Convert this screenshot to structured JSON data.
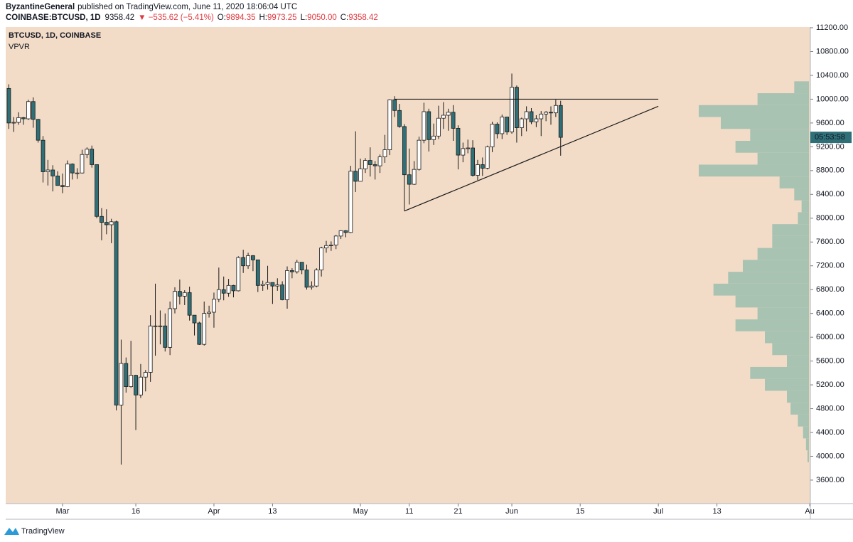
{
  "chart_data": {
    "type": "candlestick",
    "header": {
      "author": "ByzantineGeneral",
      "published": "published on TradingView.com, June 11, 2020 18:06:04 UTC",
      "symbol": "COINBASE:BTCUSD, 1D",
      "last": "9358.42",
      "change": "▼ −535.62 (−5.41%)",
      "o_label": "O:",
      "o": "9894.35",
      "h_label": "H:",
      "h": "9973.25",
      "l_label": "L:",
      "l": "9050.00",
      "c_label": "C:",
      "c": "9358.42"
    },
    "legend_title": "BTCUSD, 1D, COINBASE",
    "indicator": "VPVR",
    "countdown": "05:53:58",
    "brand": "TradingView",
    "up_color": "#ffffff",
    "down_color": "#2e6f78",
    "background": "#f2dcc7",
    "ylim": [
      3205,
      11212
    ],
    "yticks": [
      {
        "value": 3600,
        "label": "3600.00"
      },
      {
        "value": 4000,
        "label": "4000.00"
      },
      {
        "value": 4400,
        "label": "4400.00"
      },
      {
        "value": 4800,
        "label": "4800.00"
      },
      {
        "value": 5200,
        "label": "5200.00"
      },
      {
        "value": 5600,
        "label": "5600.00"
      },
      {
        "value": 6000,
        "label": "6000.00"
      },
      {
        "value": 6400,
        "label": "6400.00"
      },
      {
        "value": 6800,
        "label": "6800.00"
      },
      {
        "value": 7200,
        "label": "7200.00"
      },
      {
        "value": 7600,
        "label": "7600.00"
      },
      {
        "value": 8000,
        "label": "8000.00"
      },
      {
        "value": 8400,
        "label": "8400.00"
      },
      {
        "value": 8800,
        "label": "8800.00"
      },
      {
        "value": 9200,
        "label": "9200.00"
      },
      {
        "value": 9600,
        "label": "9600.00"
      },
      {
        "value": 10000,
        "label": "10000.00"
      },
      {
        "value": 10400,
        "label": "10400.00"
      },
      {
        "value": 10800,
        "label": "10800.00"
      },
      {
        "value": 11200,
        "label": "11200.00"
      }
    ],
    "xticks": [
      {
        "value": "Mar 1",
        "label": "Mar"
      },
      {
        "value": "Mar 16",
        "label": "16"
      },
      {
        "value": "Apr 1",
        "label": "Apr"
      },
      {
        "value": "Apr 13",
        "label": "13"
      },
      {
        "value": "May 1",
        "label": "May"
      },
      {
        "value": "May 11",
        "label": "11"
      },
      {
        "value": "May 21",
        "label": "21"
      },
      {
        "value": "Jun 1",
        "label": "Jun"
      },
      {
        "value": "Jun 15",
        "label": "15"
      },
      {
        "value": "Jul 1",
        "label": "Jul"
      },
      {
        "value": "Jul 13",
        "label": "13"
      },
      {
        "value": "Aug 1",
        "label": "Au"
      }
    ],
    "x": [
      "Feb 19",
      "Feb 20",
      "Feb 21",
      "Feb 22",
      "Feb 23",
      "Feb 24",
      "Feb 25",
      "Feb 26",
      "Feb 27",
      "Feb 28",
      "Feb 29",
      "Mar 1",
      "Mar 2",
      "Mar 3",
      "Mar 4",
      "Mar 5",
      "Mar 6",
      "Mar 7",
      "Mar 8",
      "Mar 9",
      "Mar 10",
      "Mar 11",
      "Mar 12",
      "Mar 13",
      "Mar 14",
      "Mar 15",
      "Mar 16",
      "Mar 17",
      "Mar 18",
      "Mar 19",
      "Mar 20",
      "Mar 21",
      "Mar 22",
      "Mar 23",
      "Mar 24",
      "Mar 25",
      "Mar 26",
      "Mar 27",
      "Mar 28",
      "Mar 29",
      "Mar 30",
      "Mar 31",
      "Apr 1",
      "Apr 2",
      "Apr 3",
      "Apr 4",
      "Apr 5",
      "Apr 6",
      "Apr 7",
      "Apr 8",
      "Apr 9",
      "Apr 10",
      "Apr 11",
      "Apr 12",
      "Apr 13",
      "Apr 14",
      "Apr 15",
      "Apr 16",
      "Apr 17",
      "Apr 18",
      "Apr 19",
      "Apr 20",
      "Apr 21",
      "Apr 22",
      "Apr 23",
      "Apr 24",
      "Apr 25",
      "Apr 26",
      "Apr 27",
      "Apr 28",
      "Apr 29",
      "Apr 30",
      "May 1",
      "May 2",
      "May 3",
      "May 4",
      "May 5",
      "May 6",
      "May 7",
      "May 8",
      "May 9",
      "May 10",
      "May 11",
      "May 12",
      "May 13",
      "May 14",
      "May 15",
      "May 16",
      "May 17",
      "May 18",
      "May 19",
      "May 20",
      "May 21",
      "May 22",
      "May 23",
      "May 24",
      "May 25",
      "May 26",
      "May 27",
      "May 28",
      "May 29",
      "May 30",
      "May 31",
      "Jun 1",
      "Jun 2",
      "Jun 3",
      "Jun 4",
      "Jun 5",
      "Jun 6",
      "Jun 7",
      "Jun 8",
      "Jun 9",
      "Jun 10",
      "Jun 11"
    ],
    "open": [
      10180,
      9600,
      9610,
      9690,
      9670,
      9960,
      9660,
      9310,
      8780,
      8810,
      8710,
      8550,
      8530,
      8910,
      8760,
      8760,
      9070,
      9160,
      8900,
      8030,
      7930,
      7890,
      7940,
      4860,
      5560,
      5170,
      5360,
      5030,
      5330,
      5410,
      6190,
      6190,
      6190,
      5830,
      6480,
      6770,
      6690,
      6750,
      6370,
      6240,
      5880,
      6400,
      6420,
      6640,
      6800,
      6740,
      6870,
      6780,
      7340,
      7200,
      7370,
      7300,
      6870,
      6890,
      6920,
      6860,
      6880,
      6630,
      7120,
      7100,
      7260,
      7130,
      6840,
      6860,
      7130,
      7500,
      7540,
      7550,
      7700,
      7790,
      7760,
      8790,
      8620,
      8830,
      8970,
      8900,
      8880,
      9030,
      9150,
      9990,
      9810,
      9540,
      8730,
      8570,
      8820,
      9310,
      9790,
      9320,
      9380,
      9680,
      9730,
      9780,
      9510,
      9060,
      9170,
      9180,
      8720,
      8900,
      8840,
      9200,
      9580,
      9420,
      9700,
      9450,
      10200,
      9520,
      9670,
      9790,
      9620,
      9670,
      9750,
      9780,
      9770,
      9894.35
    ],
    "high": [
      10250,
      9700,
      9780,
      9700,
      9990,
      10030,
      9670,
      9380,
      8980,
      8890,
      8790,
      8750,
      8970,
      8920,
      8840,
      9150,
      9190,
      9220,
      8900,
      8170,
      8150,
      7990,
      7960,
      5960,
      5660,
      5940,
      5370,
      5550,
      5450,
      6370,
      6900,
      6450,
      6400,
      6600,
      6840,
      6970,
      6790,
      6850,
      6370,
      6260,
      6600,
      6530,
      6750,
      7170,
      7020,
      6980,
      6880,
      7360,
      7470,
      7420,
      7380,
      7300,
      6950,
      7200,
      6920,
      6990,
      6940,
      7190,
      7160,
      7300,
      7260,
      7220,
      6940,
      7160,
      7520,
      7620,
      7610,
      7720,
      7800,
      7800,
      8880,
      9460,
      9000,
      9010,
      9190,
      8960,
      9070,
      9400,
      10000,
      10050,
      9920,
      9580,
      9170,
      8960,
      9370,
      9940,
      9840,
      9590,
      9890,
      9950,
      9840,
      9900,
      9560,
      9270,
      9320,
      9310,
      8980,
      9020,
      9220,
      9620,
      9610,
      9740,
      9700,
      10430,
      10230,
      9690,
      9880,
      9850,
      9730,
      9800,
      9800,
      9880,
      9990,
      9973.25
    ],
    "low": [
      9500,
      9450,
      9570,
      9570,
      9650,
      9520,
      9270,
      8600,
      8550,
      8450,
      8550,
      8420,
      8520,
      8650,
      8660,
      8750,
      9010,
      8850,
      8000,
      7630,
      7730,
      7580,
      4770,
      3860,
      5070,
      5150,
      4440,
      4980,
      5090,
      5250,
      5690,
      5880,
      5760,
      5700,
      6400,
      6550,
      6540,
      6280,
      6030,
      5870,
      5860,
      6330,
      6160,
      6590,
      6620,
      6680,
      6670,
      6770,
      7080,
      7150,
      7110,
      6760,
      6780,
      6800,
      6560,
      6780,
      6620,
      6480,
      6990,
      7070,
      7060,
      6800,
      6800,
      6840,
      7020,
      7420,
      7450,
      7480,
      7650,
      7680,
      7750,
      8440,
      8620,
      8760,
      8700,
      8650,
      8760,
      8930,
      9060,
      9700,
      9520,
      8120,
      8230,
      8560,
      8800,
      9260,
      9120,
      9230,
      9330,
      9500,
      9470,
      9300,
      8820,
      8940,
      9090,
      8700,
      8640,
      8710,
      8820,
      9110,
      9340,
      9330,
      9400,
      9420,
      9270,
      9380,
      9460,
      9580,
      9530,
      9380,
      9630,
      9570,
      9700,
      9050
    ],
    "close": [
      9600,
      9610,
      9690,
      9670,
      9960,
      9660,
      9310,
      8780,
      8810,
      8710,
      8550,
      8530,
      8910,
      8760,
      8760,
      9070,
      9160,
      8900,
      8030,
      7930,
      7890,
      7940,
      4860,
      5560,
      5170,
      5360,
      5030,
      5330,
      5410,
      6190,
      6190,
      6190,
      5830,
      6480,
      6770,
      6690,
      6750,
      6370,
      6240,
      5880,
      6400,
      6420,
      6640,
      6800,
      6740,
      6870,
      6780,
      7340,
      7200,
      7370,
      7300,
      6870,
      6890,
      6920,
      6860,
      6880,
      6630,
      7120,
      7100,
      7260,
      7130,
      6840,
      6860,
      7130,
      7500,
      7540,
      7550,
      7700,
      7790,
      7760,
      8790,
      8620,
      8830,
      8970,
      8900,
      8880,
      9030,
      9150,
      9990,
      9810,
      9540,
      8730,
      8570,
      8820,
      9310,
      9790,
      9320,
      9380,
      9680,
      9730,
      9780,
      9510,
      9060,
      9170,
      9180,
      8720,
      8900,
      8840,
      9200,
      9580,
      9420,
      9700,
      9450,
      10200,
      9520,
      9670,
      9790,
      9620,
      9670,
      9750,
      9780,
      9770,
      9894.35,
      9358.42
    ],
    "trendlines": [
      {
        "x": [
          "May 8",
          "Jul 1"
        ],
        "y": [
          10000,
          10000
        ]
      },
      {
        "x": [
          "May 10",
          "Jul 1"
        ],
        "y": [
          8120,
          9880
        ]
      }
    ],
    "volume_profile": {
      "color": "#a9c3b2",
      "prices": [
        4000,
        4200,
        4400,
        4600,
        4800,
        5000,
        5200,
        5400,
        5600,
        5800,
        6000,
        6200,
        6400,
        6600,
        6800,
        7000,
        7200,
        7400,
        7600,
        7800,
        8000,
        8200,
        8400,
        8600,
        8800,
        9000,
        9200,
        9400,
        9600,
        9800,
        10000,
        10200
      ],
      "values": [
        2,
        4,
        8,
        15,
        25,
        30,
        60,
        80,
        30,
        50,
        60,
        100,
        70,
        100,
        130,
        110,
        90,
        70,
        50,
        50,
        15,
        10,
        20,
        40,
        150,
        70,
        100,
        80,
        120,
        150,
        70,
        20
      ]
    }
  }
}
